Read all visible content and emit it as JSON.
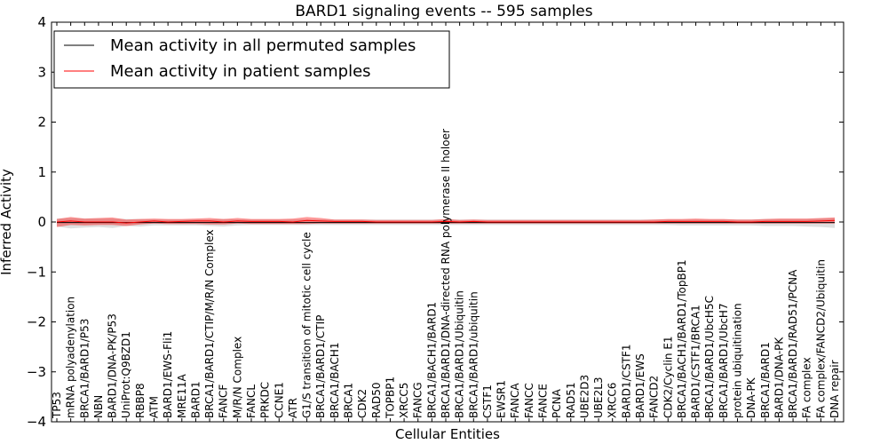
{
  "chart_data": {
    "type": "line",
    "title": "BARD1 signaling events -- 595 samples",
    "xlabel": "Cellular Entities",
    "ylabel": "Inferred Activity",
    "ylim": [
      -4,
      4
    ],
    "yticks": [
      "−4",
      "−3",
      "−2",
      "−1",
      "0",
      "1",
      "2",
      "3",
      "4"
    ],
    "legend": {
      "placement": "top-left",
      "entries": [
        {
          "label": "Mean activity in all permuted samples",
          "color": "#000000"
        },
        {
          "label": "Mean activity in patient samples",
          "color": "#ff0000"
        }
      ]
    },
    "categories": [
      "TP53",
      "mRNA polyadenylation",
      "BRCA1/BARD1/P53",
      "NBN",
      "BARD1/DNA-PK/P53",
      "UniProt:Q9BZD1",
      "RBBP8",
      "ATM",
      "BARD1/EWS-Fli1",
      "MRE11A",
      "BARD1",
      "BRCA1/BARD1/CTIP/M/R/N Complex",
      "FANCF",
      "M/R/N Complex",
      "FANCL",
      "PRKDC",
      "CCNE1",
      "ATR",
      "G1/S transition of mitotic cell cycle",
      "BRCA1/BARD1/CTIP",
      "BRCA1/BACH1",
      "BRCA1",
      "CDK2",
      "RAD50",
      "TOPBP1",
      "XRCC5",
      "FANCG",
      "BRCA1/BACH1/BARD1",
      "BRCA1/BARD1/DNA-directed RNA polymerase II holoer",
      "BRCA1/BARD1/Ubiquitin",
      "BRCA1/BARD1/ubiquitin",
      "CSTF1",
      "EWSR1",
      "FANCA",
      "FANCC",
      "FANCE",
      "PCNA",
      "RAD51",
      "UBE2D3",
      "UBE2L3",
      "XRCC6",
      "BARD1/CSTF1",
      "BARD1/EWS",
      "FANCD2",
      "CDK2/Cyclin E1",
      "BRCA1/BACH1/BARD1/TopBP1",
      "BARD1/CSTF1/BRCA1",
      "BRCA1/BARD1/UbcH5C",
      "BRCA1/BARD1/UbcH7",
      "protein ubiquitination",
      "DNA-PK",
      "BRCA1/BARD1",
      "BARD1/DNA-PK",
      "BRCA1/BARD1/RAD51/PCNA",
      "FA complex",
      "FA complex/FANCD2/Ubiquitin",
      "DNA repair"
    ],
    "series": [
      {
        "name": "Mean activity in all permuted samples",
        "color": "#000000",
        "values": [
          -0.01,
          -0.01,
          -0.01,
          -0.01,
          -0.01,
          -0.01,
          -0.01,
          -0.01,
          -0.01,
          -0.01,
          -0.01,
          -0.01,
          -0.01,
          -0.01,
          -0.01,
          -0.01,
          -0.01,
          -0.01,
          -0.01,
          -0.01,
          -0.01,
          -0.01,
          -0.01,
          -0.01,
          -0.01,
          -0.01,
          -0.01,
          -0.01,
          -0.01,
          -0.01,
          -0.01,
          -0.01,
          -0.01,
          -0.01,
          -0.01,
          -0.01,
          -0.01,
          -0.01,
          -0.01,
          -0.01,
          -0.01,
          -0.01,
          -0.01,
          -0.01,
          -0.01,
          -0.01,
          -0.01,
          -0.01,
          -0.01,
          -0.01,
          -0.01,
          -0.01,
          -0.01,
          -0.01,
          -0.01,
          -0.01,
          -0.01
        ],
        "band_lower": [
          -0.09,
          -0.13,
          -0.11,
          -0.1,
          -0.12,
          -0.08,
          -0.09,
          -0.07,
          -0.07,
          -0.07,
          -0.07,
          -0.08,
          -0.09,
          -0.07,
          -0.06,
          -0.06,
          -0.06,
          -0.06,
          -0.06,
          -0.06,
          -0.06,
          -0.06,
          -0.06,
          -0.06,
          -0.06,
          -0.06,
          -0.06,
          -0.06,
          -0.06,
          -0.06,
          -0.06,
          -0.06,
          -0.06,
          -0.06,
          -0.06,
          -0.06,
          -0.06,
          -0.06,
          -0.06,
          -0.06,
          -0.06,
          -0.06,
          -0.06,
          -0.06,
          -0.06,
          -0.07,
          -0.07,
          -0.07,
          -0.07,
          -0.07,
          -0.07,
          -0.08,
          -0.08,
          -0.08,
          -0.09,
          -0.1,
          -0.12
        ],
        "band_upper": [
          0.07,
          0.08,
          0.07,
          0.07,
          0.07,
          0.06,
          0.06,
          0.05,
          0.05,
          0.05,
          0.05,
          0.05,
          0.06,
          0.05,
          0.05,
          0.05,
          0.05,
          0.05,
          0.05,
          0.05,
          0.05,
          0.05,
          0.05,
          0.05,
          0.05,
          0.05,
          0.05,
          0.05,
          0.05,
          0.05,
          0.05,
          0.05,
          0.05,
          0.05,
          0.05,
          0.05,
          0.05,
          0.05,
          0.05,
          0.05,
          0.05,
          0.05,
          0.05,
          0.05,
          0.05,
          0.05,
          0.05,
          0.05,
          0.05,
          0.05,
          0.05,
          0.06,
          0.06,
          0.06,
          0.06,
          0.07,
          0.08
        ]
      },
      {
        "name": "Mean activity in patient samples",
        "color": "#ff0000",
        "values": [
          0.0,
          0.02,
          0.0,
          0.0,
          0.0,
          -0.02,
          0.0,
          0.02,
          0.0,
          0.01,
          0.02,
          0.02,
          0.0,
          0.02,
          0.01,
          0.01,
          0.01,
          0.0,
          0.03,
          0.02,
          0.01,
          0.01,
          0.01,
          0.0,
          0.0,
          0.0,
          0.0,
          0.0,
          0.01,
          0.0,
          0.01,
          0.0,
          0.0,
          0.0,
          0.0,
          0.0,
          0.0,
          0.0,
          0.0,
          0.0,
          0.0,
          0.0,
          0.0,
          0.0,
          0.01,
          0.01,
          0.01,
          0.01,
          0.01,
          0.0,
          0.0,
          0.01,
          0.01,
          0.01,
          0.01,
          0.02,
          0.03
        ],
        "band_lower": [
          -0.1,
          -0.06,
          -0.07,
          -0.06,
          -0.06,
          -0.08,
          -0.05,
          -0.03,
          -0.04,
          -0.04,
          -0.04,
          -0.05,
          -0.05,
          -0.03,
          -0.04,
          -0.04,
          -0.04,
          -0.04,
          -0.04,
          -0.03,
          -0.03,
          -0.03,
          -0.03,
          -0.03,
          -0.03,
          -0.03,
          -0.03,
          -0.03,
          -0.03,
          -0.03,
          -0.03,
          -0.03,
          -0.03,
          -0.03,
          -0.03,
          -0.03,
          -0.03,
          -0.03,
          -0.03,
          -0.03,
          -0.03,
          -0.03,
          -0.03,
          -0.03,
          -0.03,
          -0.03,
          -0.03,
          -0.03,
          -0.03,
          -0.03,
          -0.03,
          -0.03,
          -0.03,
          -0.03,
          -0.03,
          -0.03,
          -0.03
        ],
        "band_upper": [
          0.06,
          0.1,
          0.07,
          0.08,
          0.09,
          0.05,
          0.06,
          0.07,
          0.06,
          0.06,
          0.07,
          0.08,
          0.06,
          0.08,
          0.06,
          0.06,
          0.06,
          0.07,
          0.1,
          0.08,
          0.05,
          0.05,
          0.05,
          0.04,
          0.04,
          0.04,
          0.04,
          0.04,
          0.06,
          0.04,
          0.05,
          0.04,
          0.04,
          0.04,
          0.04,
          0.04,
          0.04,
          0.04,
          0.04,
          0.04,
          0.04,
          0.04,
          0.04,
          0.05,
          0.06,
          0.06,
          0.07,
          0.06,
          0.06,
          0.05,
          0.05,
          0.06,
          0.07,
          0.07,
          0.07,
          0.08,
          0.09
        ]
      }
    ]
  }
}
